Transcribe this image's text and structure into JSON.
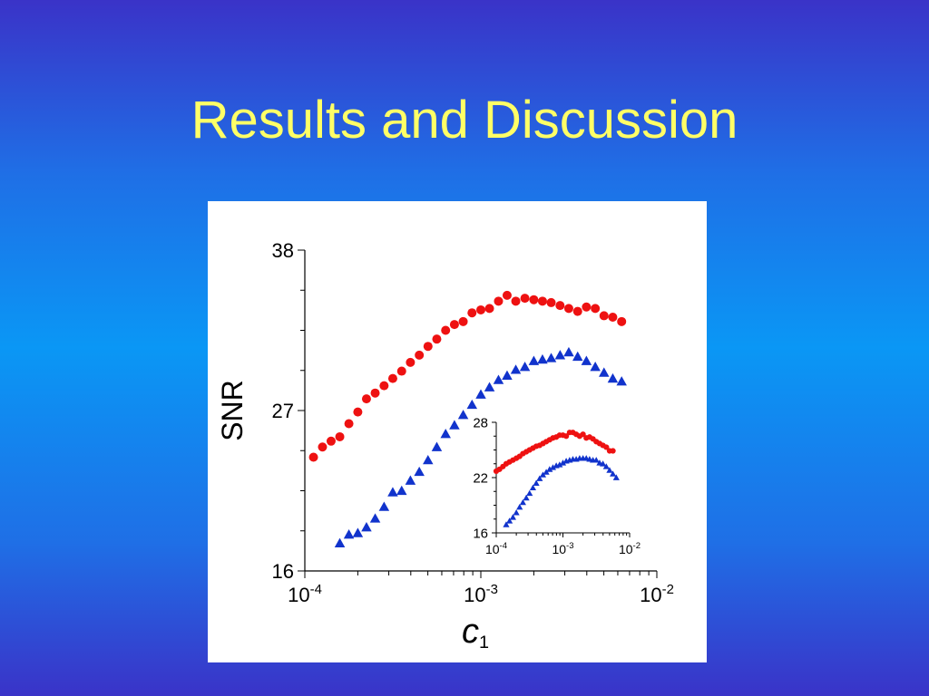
{
  "slide": {
    "title": "Results and Discussion"
  },
  "colors": {
    "series_circle": "#ee1111",
    "series_triangle": "#1133cc"
  },
  "chart_data": [
    {
      "type": "scatter",
      "role": "main",
      "xlabel": "c",
      "xlabel_subscript": "1",
      "ylabel": "SNR",
      "xscale": "log",
      "xlim": [
        0.0001,
        0.01
      ],
      "ylim": [
        16,
        38
      ],
      "ytick_labels": [
        "16",
        "27",
        "38"
      ],
      "xtick_labels": [
        {
          "base": "10",
          "exp": "-4"
        },
        {
          "base": "10",
          "exp": "-3"
        },
        {
          "base": "10",
          "exp": "-2"
        }
      ],
      "grid": false,
      "series": [
        {
          "marker": "circle",
          "color": "#ee1111",
          "x": [
            0.000112,
            0.000126,
            0.000141,
            0.000158,
            0.000178,
            0.0002,
            0.000224,
            0.000251,
            0.000282,
            0.000316,
            0.000355,
            0.000398,
            0.000447,
            0.000501,
            0.000562,
            0.000631,
            0.000708,
            0.000794,
            0.000891,
            0.001,
            0.00112,
            0.00126,
            0.00141,
            0.00158,
            0.00178,
            0.002,
            0.00224,
            0.00251,
            0.00282,
            0.00316,
            0.00355,
            0.00398,
            0.00447,
            0.00501,
            0.00562,
            0.00631
          ],
          "y": [
            23.8,
            24.5,
            24.9,
            25.2,
            26.1,
            26.9,
            27.8,
            28.2,
            28.7,
            29.2,
            29.7,
            30.3,
            30.8,
            31.4,
            31.9,
            32.5,
            32.9,
            33.1,
            33.7,
            33.9,
            34.0,
            34.5,
            34.9,
            34.5,
            34.7,
            34.6,
            34.5,
            34.4,
            34.2,
            34.0,
            33.8,
            34.1,
            34.0,
            33.5,
            33.4,
            33.1
          ]
        },
        {
          "marker": "triangle",
          "color": "#1133cc",
          "x": [
            0.000158,
            0.000178,
            0.0002,
            0.000224,
            0.000251,
            0.000282,
            0.000316,
            0.000355,
            0.000398,
            0.000447,
            0.000501,
            0.000562,
            0.000631,
            0.000708,
            0.000794,
            0.000891,
            0.001,
            0.00112,
            0.00126,
            0.00141,
            0.00158,
            0.00178,
            0.002,
            0.00224,
            0.00251,
            0.00282,
            0.00316,
            0.00355,
            0.00398,
            0.00447,
            0.00501,
            0.00562,
            0.00631
          ],
          "y": [
            17.9,
            18.5,
            18.6,
            19.0,
            19.6,
            20.4,
            21.4,
            21.5,
            22.2,
            22.8,
            23.6,
            24.5,
            25.4,
            26.0,
            26.7,
            27.4,
            28.1,
            28.6,
            29.1,
            29.4,
            29.8,
            30.0,
            30.4,
            30.5,
            30.6,
            30.8,
            31.0,
            30.7,
            30.4,
            30.0,
            29.6,
            29.2,
            29.0
          ]
        }
      ]
    },
    {
      "type": "scatter",
      "role": "inset",
      "xscale": "log",
      "xlim": [
        0.0001,
        0.01
      ],
      "ylim": [
        16,
        28
      ],
      "ytick_labels": [
        "16",
        "22",
        "28"
      ],
      "xtick_labels": [
        {
          "base": "10",
          "exp": "-4"
        },
        {
          "base": "10",
          "exp": "-3"
        },
        {
          "base": "10",
          "exp": "-2"
        }
      ],
      "series": [
        {
          "marker": "circle",
          "color": "#ee1111",
          "x": [
            0.0001,
            0.000112,
            0.000126,
            0.000141,
            0.000158,
            0.000178,
            0.0002,
            0.000224,
            0.000251,
            0.000282,
            0.000316,
            0.000355,
            0.000398,
            0.000447,
            0.000501,
            0.000562,
            0.000631,
            0.000708,
            0.000794,
            0.000891,
            0.001,
            0.00112,
            0.00126,
            0.00141,
            0.00158,
            0.00178,
            0.002,
            0.00224,
            0.00251,
            0.00282,
            0.00316,
            0.00355,
            0.00398,
            0.00447,
            0.00501,
            0.00562
          ],
          "y": [
            22.7,
            22.9,
            23.2,
            23.5,
            23.7,
            23.9,
            24.1,
            24.3,
            24.6,
            24.8,
            25.0,
            25.2,
            25.4,
            25.5,
            25.7,
            25.9,
            26.1,
            26.3,
            26.4,
            26.6,
            26.6,
            26.5,
            26.9,
            26.9,
            26.7,
            26.5,
            26.7,
            26.3,
            26.4,
            26.2,
            25.9,
            25.7,
            25.5,
            25.3,
            24.9,
            24.9
          ]
        },
        {
          "marker": "triangle",
          "color": "#1133cc",
          "x": [
            0.000141,
            0.000158,
            0.000178,
            0.0002,
            0.000224,
            0.000251,
            0.000282,
            0.000316,
            0.000355,
            0.000398,
            0.000447,
            0.000501,
            0.000562,
            0.000631,
            0.000708,
            0.000794,
            0.000891,
            0.001,
            0.00112,
            0.00126,
            0.00141,
            0.00158,
            0.00178,
            0.002,
            0.00224,
            0.00251,
            0.00282,
            0.00316,
            0.00355,
            0.00398,
            0.00447,
            0.00501,
            0.00562,
            0.00631
          ],
          "y": [
            16.9,
            17.3,
            17.7,
            18.2,
            18.8,
            19.3,
            19.8,
            20.3,
            20.9,
            21.4,
            21.9,
            22.3,
            22.6,
            22.9,
            23.1,
            23.3,
            23.4,
            23.6,
            23.8,
            23.9,
            24.0,
            24.0,
            24.1,
            24.1,
            24.1,
            24.0,
            23.9,
            23.9,
            23.6,
            23.5,
            23.2,
            22.8,
            22.4,
            22.0
          ]
        }
      ]
    }
  ]
}
